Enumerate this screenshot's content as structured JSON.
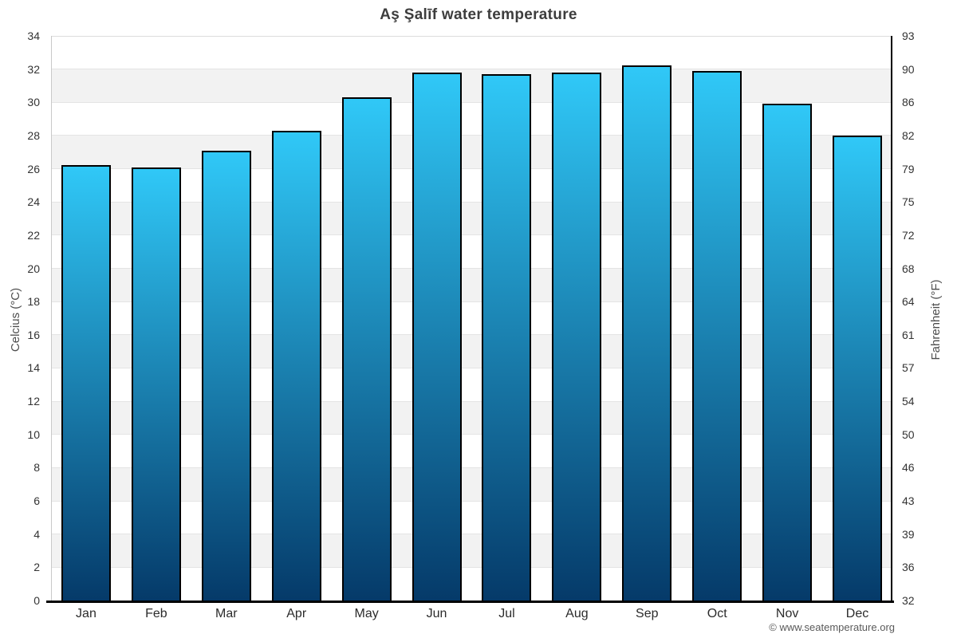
{
  "page": {
    "footer": "© www.seatemperature.org"
  },
  "chart_data": {
    "type": "bar",
    "title": "Aş Şalīf water temperature",
    "categories": [
      "Jan",
      "Feb",
      "Mar",
      "Apr",
      "May",
      "Jun",
      "Jul",
      "Aug",
      "Sep",
      "Oct",
      "Nov",
      "Dec"
    ],
    "values": [
      26.2,
      26.1,
      27.1,
      28.3,
      30.3,
      31.8,
      31.7,
      31.8,
      32.2,
      31.9,
      29.9,
      28.0
    ],
    "ylabel_left": "Celcius (°C)",
    "ylabel_right": "Fahrenheit (°F)",
    "ylim": [
      0,
      34
    ],
    "ytick_step_celsius": 2,
    "yticks_celsius": [
      34,
      32,
      30,
      28,
      26,
      24,
      22,
      20,
      18,
      16,
      14,
      12,
      10,
      8,
      6,
      4,
      2,
      0
    ],
    "yticks_fahrenheit": [
      93,
      90,
      86,
      82,
      79,
      75,
      72,
      68,
      64,
      61,
      57,
      54,
      50,
      46,
      43,
      39,
      36,
      32
    ],
    "legend": "none",
    "grid": "horizontal-alternating-bands",
    "colors": {
      "bar_gradient_top": "#30c8f7",
      "bar_gradient_bottom": "#053a69",
      "bar_border": "#000000",
      "band_alt": "#f2f2f2",
      "band_base": "#ffffff",
      "gridline": "#e4e4e4",
      "axis_left_line": "#c9c9c9",
      "axis_top_line": "#dcdcdc",
      "axis_right_line": "#000000",
      "axis_bottom_line": "#000000",
      "title_text": "#3d3d3d",
      "tick_text": "#333333",
      "axis_title_text": "#4d4d4d",
      "footer_text": "#5a5a5a",
      "background": "#ffffff"
    }
  }
}
